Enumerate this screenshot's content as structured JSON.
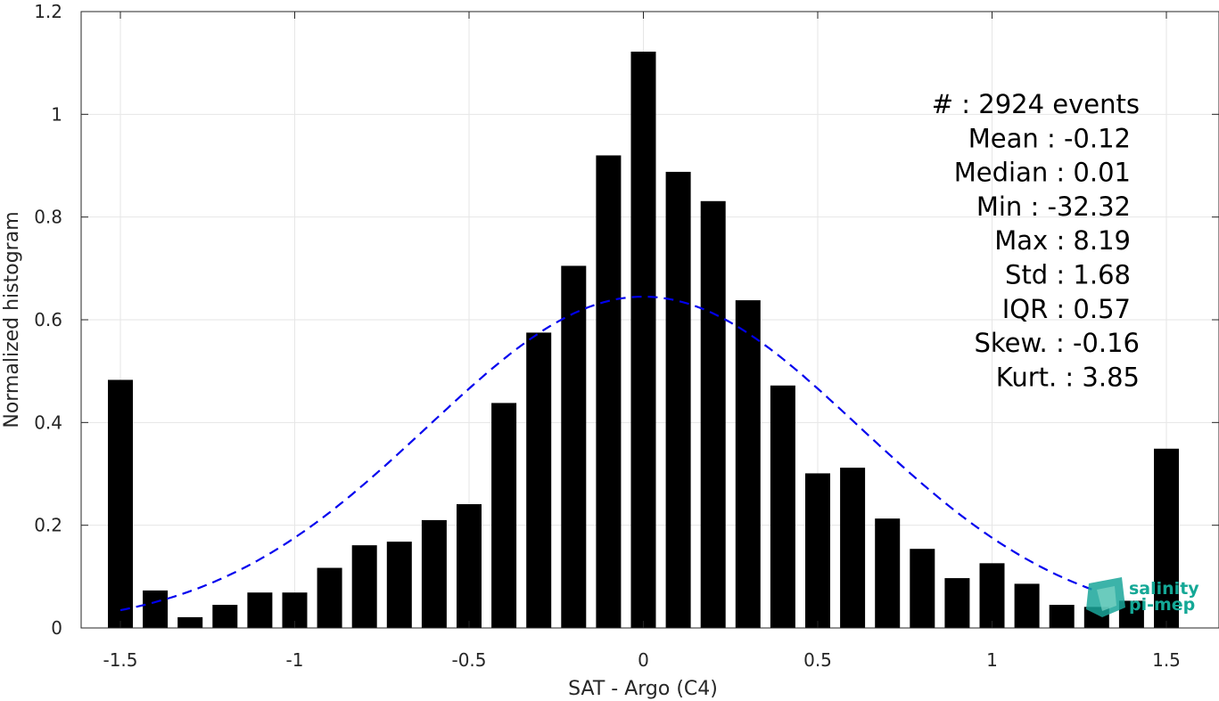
{
  "chart_data": {
    "type": "bar",
    "xlabel": "SAT - Argo (C4)",
    "ylabel": "Normalized histogram",
    "xlim": [
      -1.55,
      1.55
    ],
    "ylim": [
      0,
      1.2
    ],
    "grid": true,
    "x_ticks": [
      -1.5,
      -1,
      -0.5,
      0,
      0.5,
      1,
      1.5
    ],
    "x_tick_labels": [
      "-1.5",
      "-1",
      "-0.5",
      "0",
      "0.5",
      "1",
      "1.5"
    ],
    "y_ticks": [
      0,
      0.2,
      0.4,
      0.6,
      0.8,
      1,
      1.2
    ],
    "y_tick_labels": [
      "0",
      "0.2",
      "0.4",
      "0.6",
      "0.8",
      "1",
      "1.2"
    ],
    "bin_centers": [
      -1.5,
      -1.4,
      -1.3,
      -1.2,
      -1.1,
      -1.0,
      -0.9,
      -0.8,
      -0.7,
      -0.6,
      -0.5,
      -0.4,
      -0.3,
      -0.2,
      -0.1,
      0.0,
      0.1,
      0.2,
      0.3,
      0.4,
      0.5,
      0.6,
      0.7,
      0.8,
      0.9,
      1.0,
      1.1,
      1.2,
      1.3,
      1.4,
      1.5
    ],
    "values": [
      0.483,
      0.073,
      0.021,
      0.045,
      0.069,
      0.069,
      0.117,
      0.161,
      0.168,
      0.21,
      0.241,
      0.438,
      0.575,
      0.705,
      0.92,
      1.122,
      0.888,
      0.831,
      0.638,
      0.472,
      0.301,
      0.312,
      0.213,
      0.154,
      0.097,
      0.126,
      0.086,
      0.045,
      0.041,
      0.053,
      0.349
    ],
    "bar_color": "#000000",
    "fit": {
      "style": "dashed",
      "color": "#0000ee",
      "x_range": [
        -1.5,
        1.3
      ],
      "peak": 0.645,
      "mean": 0.0,
      "sigma": 0.62
    },
    "stats": [
      {
        "text": "#  : 2924 events",
        "anchor": "end"
      },
      {
        "text": "Mean : -0.12",
        "anchor": "end"
      },
      {
        "text": "Median : 0.01",
        "anchor": "end"
      },
      {
        "text": "Min : -32.32",
        "anchor": "end"
      },
      {
        "text": "Max : 8.19",
        "anchor": "end"
      },
      {
        "text": "Std : 1.68",
        "anchor": "end"
      },
      {
        "text": "IQR : 0.57",
        "anchor": "end"
      },
      {
        "text": "Skew. : -0.16",
        "anchor": "end"
      },
      {
        "text": "Kurt. : 3.85",
        "anchor": "end"
      }
    ]
  },
  "logo": {
    "line1": "salinity",
    "line2": "pi-mep",
    "color": "#14a896"
  }
}
